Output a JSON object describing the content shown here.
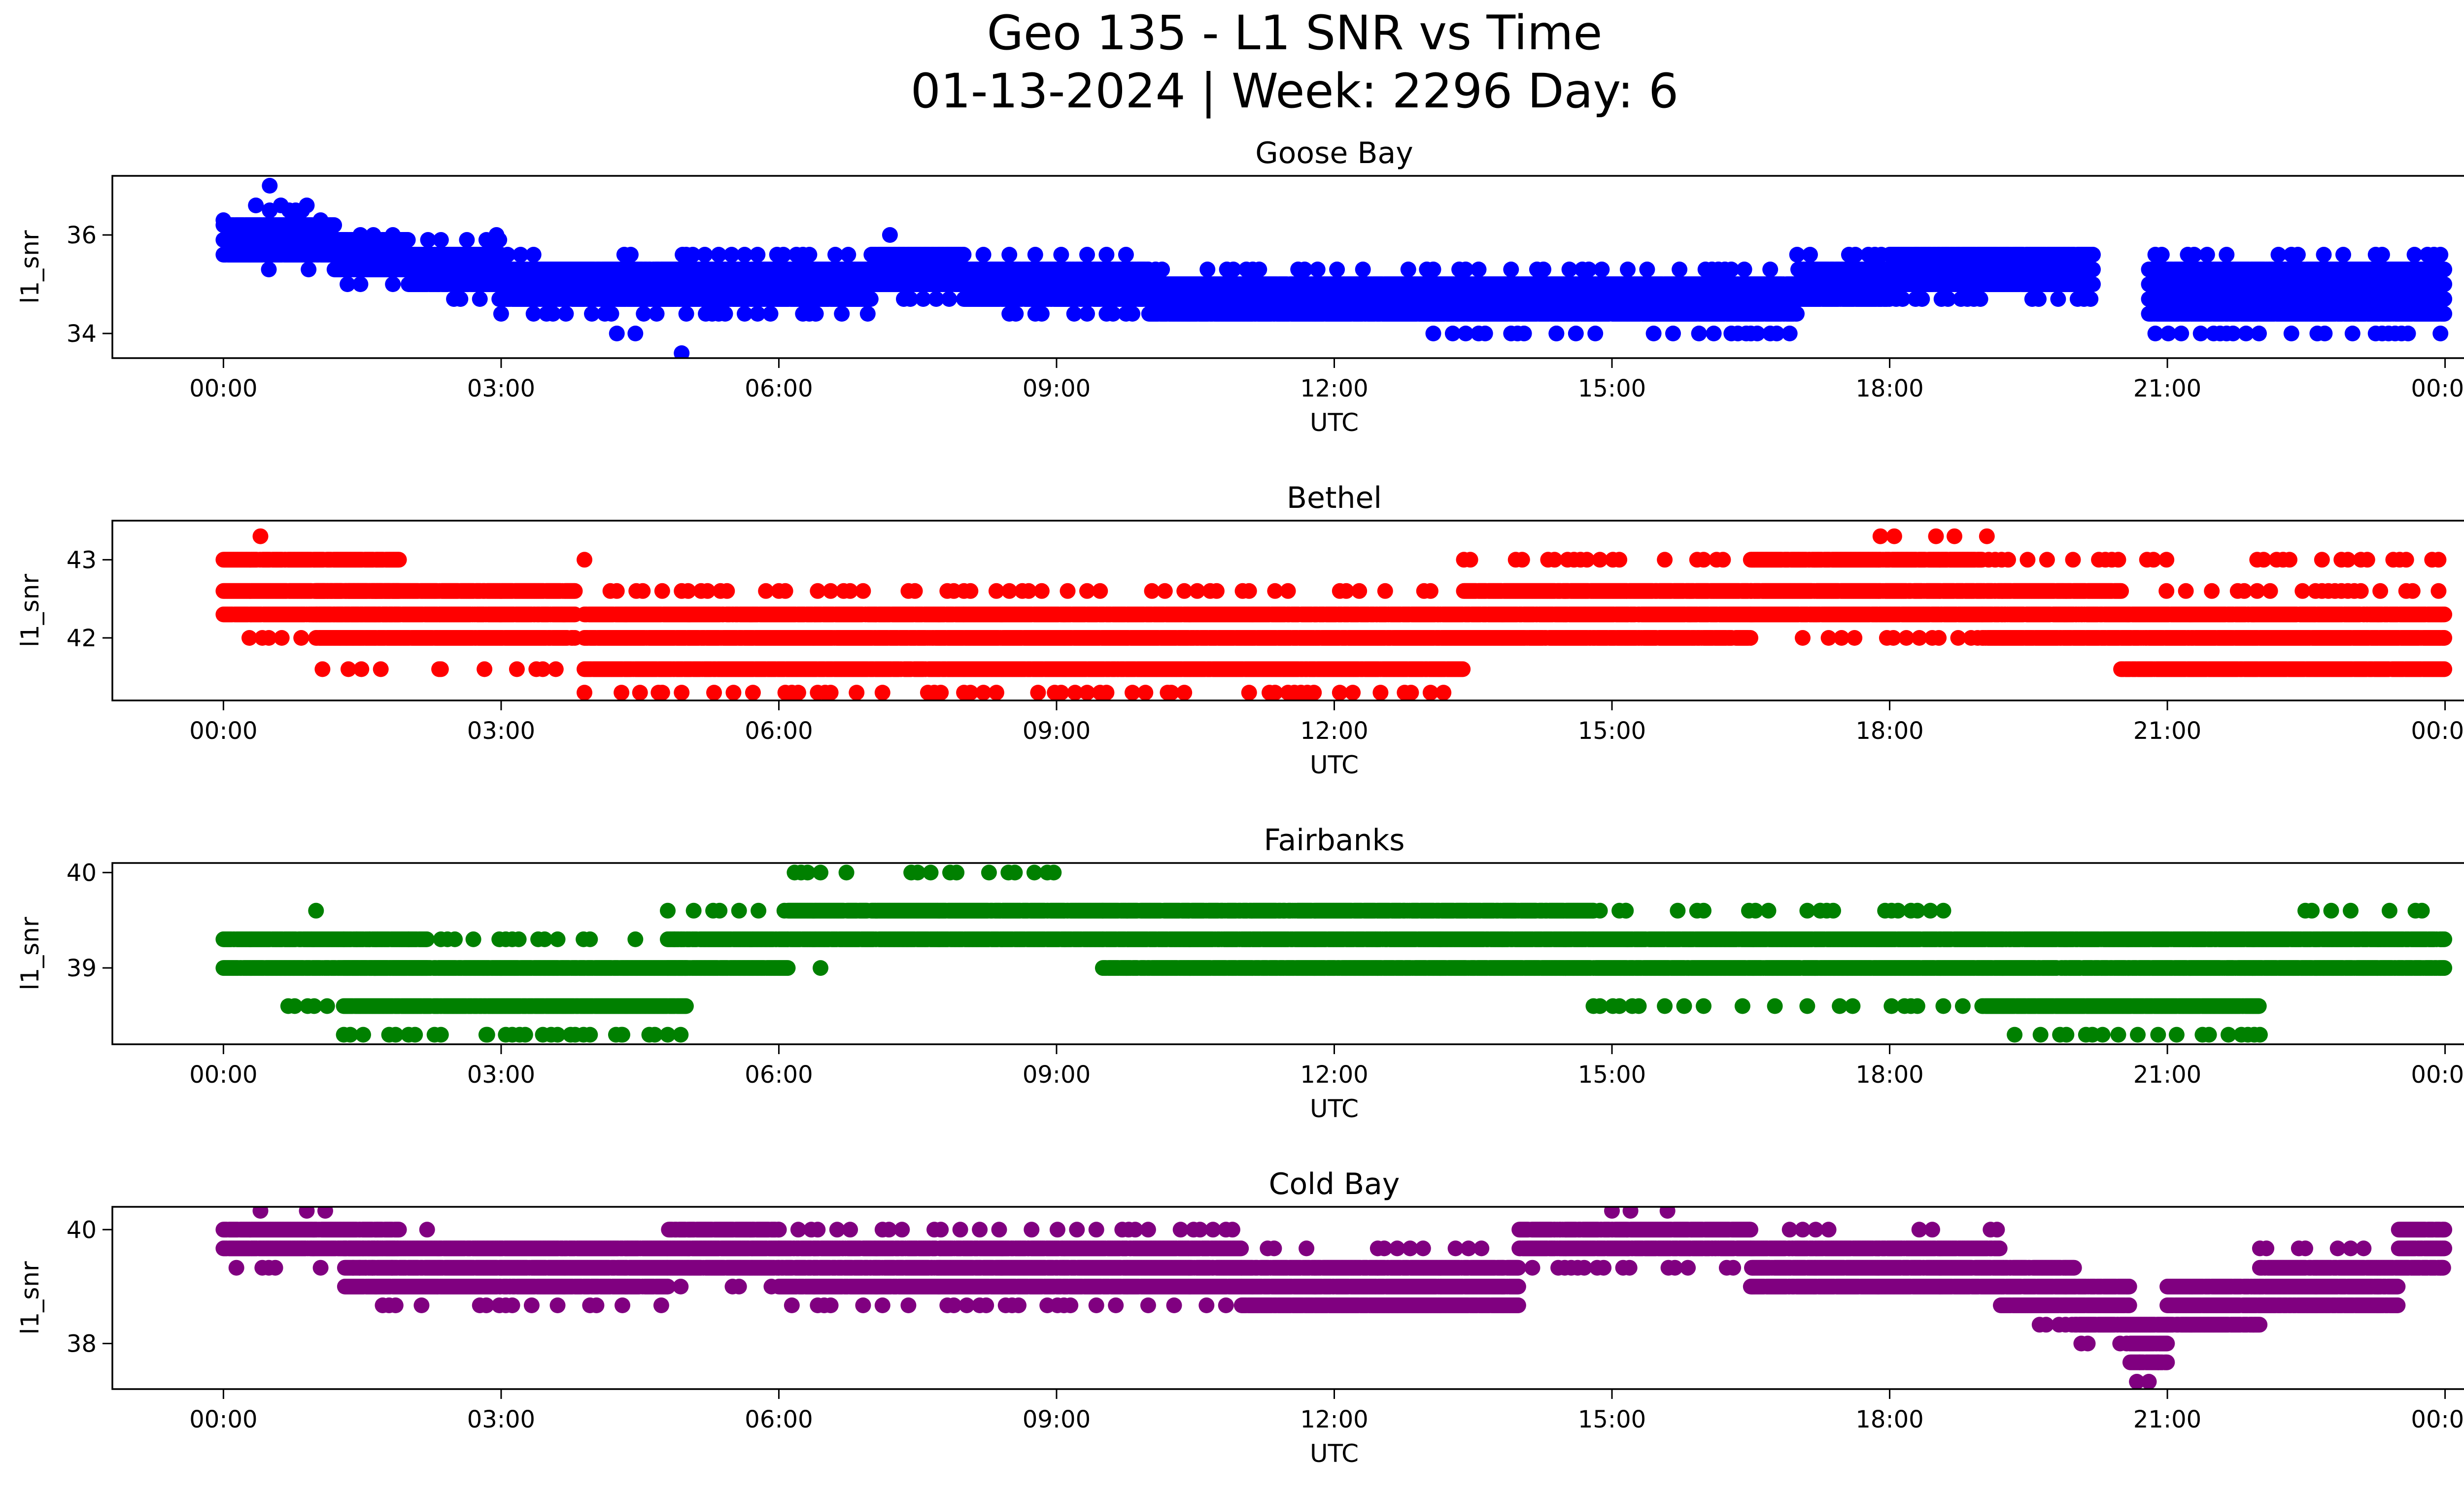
{
  "figure": {
    "title_line1": "Geo 135 - L1 SNR vs Time",
    "title_line2": "01-13-2024 | Week: 2296 Day: 6"
  },
  "chart_data": [
    {
      "type": "scatter",
      "title": "Goose Bay",
      "xlabel": "UTC",
      "ylabel": "l1_snr",
      "color": "#0000ff",
      "xlim_hours": [
        -1.2,
        25.2
      ],
      "ylim": [
        33.5,
        37.2
      ],
      "xticks": [
        "00:00",
        "03:00",
        "06:00",
        "09:00",
        "12:00",
        "15:00",
        "18:00",
        "21:00",
        "00:00"
      ],
      "ytick_values": [
        34,
        36
      ],
      "yticks": [
        "34",
        "36"
      ],
      "y_step": 0.3,
      "gaps": [
        [
          20.2,
          20.8
        ]
      ],
      "segments": [
        {
          "t": [
            0.0,
            0.5
          ],
          "levels": [
            35.6,
            35.9,
            36.2
          ],
          "sparse": [
            35.3
          ]
        },
        {
          "t": [
            0.5,
            1.2
          ],
          "levels": [
            35.6,
            35.9,
            36.2
          ],
          "sparse": [
            36.5,
            35.3
          ]
        },
        {
          "t": [
            1.2,
            2.0
          ],
          "levels": [
            35.3,
            35.6,
            35.9
          ],
          "sparse": [
            36.0,
            35.0
          ]
        },
        {
          "t": [
            2.0,
            3.0
          ],
          "levels": [
            35.0,
            35.3,
            35.6
          ],
          "sparse": [
            34.7,
            35.9
          ]
        },
        {
          "t": [
            3.0,
            5.0
          ],
          "levels": [
            34.7,
            35.0,
            35.3
          ],
          "sparse": [
            34.4,
            35.6
          ]
        },
        {
          "t": [
            5.0,
            7.0
          ],
          "levels": [
            34.7,
            35.0,
            35.3
          ],
          "sparse": [
            34.4,
            35.6
          ]
        },
        {
          "t": [
            7.0,
            8.0
          ],
          "levels": [
            35.0,
            35.3,
            35.6
          ],
          "sparse": [
            34.7
          ]
        },
        {
          "t": [
            8.0,
            10.0
          ],
          "levels": [
            34.7,
            35.0,
            35.3
          ],
          "sparse": [
            34.4,
            35.6
          ]
        },
        {
          "t": [
            10.0,
            13.0
          ],
          "levels": [
            34.4,
            34.7,
            35.0
          ],
          "sparse": [
            35.3
          ]
        },
        {
          "t": [
            13.0,
            17.0
          ],
          "levels": [
            34.4,
            34.7,
            35.0
          ],
          "sparse": [
            34.0,
            35.3
          ]
        },
        {
          "t": [
            17.0,
            18.0
          ],
          "levels": [
            34.7,
            35.0,
            35.3
          ],
          "sparse": [
            35.6
          ]
        },
        {
          "t": [
            18.0,
            20.2
          ],
          "levels": [
            35.0,
            35.3,
            35.6
          ],
          "sparse": [
            34.7
          ]
        },
        {
          "t": [
            20.8,
            24.0
          ],
          "levels": [
            34.4,
            34.7,
            35.0,
            35.3
          ],
          "sparse": [
            34.0,
            35.6
          ]
        }
      ],
      "outliers": [
        [
          0.5,
          37.0
        ],
        [
          0.0,
          36.3
        ],
        [
          0.35,
          36.6
        ],
        [
          0.62,
          36.6
        ],
        [
          0.9,
          36.6
        ],
        [
          1.05,
          36.3
        ],
        [
          4.25,
          34.0
        ],
        [
          4.45,
          34.0
        ],
        [
          4.95,
          33.6
        ],
        [
          5.2,
          35.6
        ],
        [
          7.2,
          36.0
        ],
        [
          2.95,
          36.0
        ],
        [
          14.4,
          34.0
        ],
        [
          16.1,
          34.0
        ],
        [
          16.45,
          34.0
        ],
        [
          22.2,
          35.6
        ],
        [
          22.7,
          34.0
        ],
        [
          23.0,
          34.0
        ],
        [
          23.6,
          34.0
        ]
      ]
    },
    {
      "type": "scatter",
      "title": "Bethel",
      "xlabel": "UTC",
      "ylabel": "l1_snr",
      "color": "#ff0000",
      "xlim_hours": [
        -1.2,
        25.2
      ],
      "ylim": [
        41.2,
        43.5
      ],
      "xticks": [
        "00:00",
        "03:00",
        "06:00",
        "09:00",
        "12:00",
        "15:00",
        "18:00",
        "21:00",
        "00:00"
      ],
      "ytick_values": [
        42,
        43
      ],
      "yticks": [
        "42",
        "43"
      ],
      "y_step": 0.3,
      "gaps": [],
      "segments": [
        {
          "t": [
            0.0,
            1.9
          ],
          "levels": [
            42.3,
            42.6,
            43.0
          ],
          "sparse": [
            42.0
          ]
        },
        {
          "t": [
            1.0,
            3.8
          ],
          "levels": [
            42.0,
            42.3,
            42.6
          ],
          "sparse": [
            41.6
          ]
        },
        {
          "t": [
            3.9,
            8.0
          ],
          "levels": [
            41.6,
            42.0,
            42.3
          ],
          "sparse": [
            42.6,
            41.3
          ]
        },
        {
          "t": [
            8.0,
            13.4
          ],
          "levels": [
            41.6,
            42.0,
            42.3
          ],
          "sparse": [
            42.6,
            41.3
          ]
        },
        {
          "t": [
            13.4,
            16.5
          ],
          "levels": [
            42.0,
            42.3,
            42.6
          ],
          "sparse": [
            43.0
          ]
        },
        {
          "t": [
            16.5,
            19.0
          ],
          "levels": [
            42.3,
            42.6,
            43.0
          ],
          "sparse": [
            42.0
          ]
        },
        {
          "t": [
            19.0,
            20.5
          ],
          "levels": [
            42.0,
            42.3,
            42.6
          ],
          "sparse": [
            43.0
          ]
        },
        {
          "t": [
            20.5,
            24.0
          ],
          "levels": [
            42.0,
            42.3,
            41.6
          ],
          "sparse": [
            42.6,
            43.0
          ]
        }
      ],
      "outliers": [
        [
          0.4,
          43.3
        ],
        [
          2.35,
          41.6
        ],
        [
          3.9,
          43.0
        ],
        [
          17.9,
          43.3
        ],
        [
          18.05,
          43.3
        ],
        [
          18.5,
          43.3
        ],
        [
          18.7,
          43.3
        ],
        [
          19.05,
          43.3
        ],
        [
          4.3,
          41.3
        ],
        [
          4.5,
          41.3
        ],
        [
          4.7,
          41.3
        ],
        [
          4.95,
          41.3
        ],
        [
          6.5,
          41.3
        ],
        [
          8.8,
          41.3
        ],
        [
          9.2,
          41.3
        ],
        [
          10.2,
          41.3
        ],
        [
          11.3,
          41.3
        ],
        [
          12.5,
          41.3
        ]
      ]
    },
    {
      "type": "scatter",
      "title": "Fairbanks",
      "xlabel": "UTC",
      "ylabel": "l1_snr",
      "color": "#008000",
      "xlim_hours": [
        -1.2,
        25.2
      ],
      "ylim": [
        38.2,
        40.1
      ],
      "xticks": [
        "00:00",
        "03:00",
        "06:00",
        "09:00",
        "12:00",
        "15:00",
        "18:00",
        "21:00",
        "00:00"
      ],
      "ytick_values": [
        39,
        40
      ],
      "yticks": [
        "39",
        "40"
      ],
      "y_step": 0.3,
      "gaps": [],
      "segments": [
        {
          "t": [
            0.0,
            2.2
          ],
          "levels": [
            39.0,
            39.3
          ],
          "sparse": [
            38.6
          ]
        },
        {
          "t": [
            1.3,
            5.0
          ],
          "levels": [
            38.6,
            39.0
          ],
          "sparse": [
            39.3,
            38.3
          ]
        },
        {
          "t": [
            4.8,
            6.1
          ],
          "levels": [
            39.0,
            39.3
          ],
          "sparse": [
            39.6
          ]
        },
        {
          "t": [
            6.1,
            9.5
          ],
          "levels": [
            39.3,
            39.6
          ],
          "sparse": [
            40.0
          ]
        },
        {
          "t": [
            9.5,
            14.8
          ],
          "levels": [
            39.0,
            39.3,
            39.6
          ],
          "sparse": []
        },
        {
          "t": [
            14.8,
            19.0
          ],
          "levels": [
            39.0,
            39.3
          ],
          "sparse": [
            38.6,
            39.6
          ]
        },
        {
          "t": [
            19.0,
            22.0
          ],
          "levels": [
            38.6,
            39.0,
            39.3
          ],
          "sparse": [
            38.3
          ]
        },
        {
          "t": [
            22.0,
            24.0
          ],
          "levels": [
            39.0,
            39.3
          ],
          "sparse": [
            39.6
          ]
        }
      ],
      "outliers": [
        [
          1.0,
          39.6
        ],
        [
          2.5,
          39.3
        ],
        [
          6.45,
          40.0
        ],
        [
          6.45,
          39.0
        ],
        [
          15.15,
          39.6
        ],
        [
          17.25,
          39.6
        ],
        [
          2.85,
          38.3
        ],
        [
          3.2,
          38.3
        ],
        [
          3.45,
          38.3
        ],
        [
          3.8,
          38.3
        ],
        [
          4.3,
          38.3
        ],
        [
          4.6,
          38.3
        ],
        [
          20.3,
          38.3
        ],
        [
          20.9,
          38.3
        ],
        [
          21.1,
          38.3
        ],
        [
          22.0,
          38.3
        ]
      ]
    },
    {
      "type": "scatter",
      "title": "Cold Bay",
      "xlabel": "UTC",
      "ylabel": "l1_snr",
      "color": "#800080",
      "xlim_hours": [
        -1.2,
        25.2
      ],
      "ylim": [
        37.2,
        40.4
      ],
      "xticks": [
        "00:00",
        "03:00",
        "06:00",
        "09:00",
        "12:00",
        "15:00",
        "18:00",
        "21:00",
        "00:00"
      ],
      "ytick_values": [
        38,
        40
      ],
      "yticks": [
        "38",
        "40"
      ],
      "y_step": 0.33,
      "gaps": [],
      "segments": [
        {
          "t": [
            0.0,
            1.9
          ],
          "levels": [
            39.67,
            40.0
          ],
          "sparse": [
            39.33
          ]
        },
        {
          "t": [
            1.3,
            4.8
          ],
          "levels": [
            39.0,
            39.33,
            39.67
          ],
          "sparse": [
            38.67
          ]
        },
        {
          "t": [
            4.8,
            6.0
          ],
          "levels": [
            39.33,
            39.67,
            40.0
          ],
          "sparse": [
            39.0
          ]
        },
        {
          "t": [
            6.0,
            11.0
          ],
          "levels": [
            39.0,
            39.33,
            39.67
          ],
          "sparse": [
            40.0,
            38.67
          ]
        },
        {
          "t": [
            11.0,
            14.0
          ],
          "levels": [
            38.67,
            39.0,
            39.33
          ],
          "sparse": [
            39.67
          ]
        },
        {
          "t": [
            14.0,
            16.5
          ],
          "levels": [
            39.67,
            40.0
          ],
          "sparse": [
            39.33
          ]
        },
        {
          "t": [
            16.5,
            19.2
          ],
          "levels": [
            39.0,
            39.33,
            39.67
          ],
          "sparse": [
            40.0
          ]
        },
        {
          "t": [
            19.2,
            20.0
          ],
          "levels": [
            38.67,
            39.0,
            39.33
          ],
          "sparse": [
            38.33
          ]
        },
        {
          "t": [
            20.0,
            20.6
          ],
          "levels": [
            38.33,
            38.67,
            39.0
          ],
          "sparse": [
            38.0
          ]
        },
        {
          "t": [
            20.6,
            21.0
          ],
          "levels": [
            37.67,
            38.0,
            38.33
          ],
          "sparse": [
            37.33
          ]
        },
        {
          "t": [
            21.0,
            22.0
          ],
          "levels": [
            38.33,
            38.67,
            39.0
          ],
          "sparse": []
        },
        {
          "t": [
            22.0,
            23.5
          ],
          "levels": [
            38.67,
            39.0,
            39.33
          ],
          "sparse": [
            39.67
          ]
        },
        {
          "t": [
            23.5,
            24.0
          ],
          "levels": [
            39.33,
            39.67,
            40.0
          ],
          "sparse": []
        }
      ],
      "outliers": [
        [
          0.4,
          40.33
        ],
        [
          0.9,
          40.33
        ],
        [
          1.1,
          40.33
        ],
        [
          15.0,
          40.33
        ],
        [
          15.2,
          40.33
        ],
        [
          15.6,
          40.33
        ],
        [
          10.9,
          40.0
        ],
        [
          2.2,
          40.0
        ],
        [
          20.8,
          37.33
        ],
        [
          20.7,
          37.67
        ],
        [
          20.9,
          37.67
        ],
        [
          8.9,
          38.67
        ],
        [
          13.6,
          38.67
        ]
      ]
    }
  ]
}
